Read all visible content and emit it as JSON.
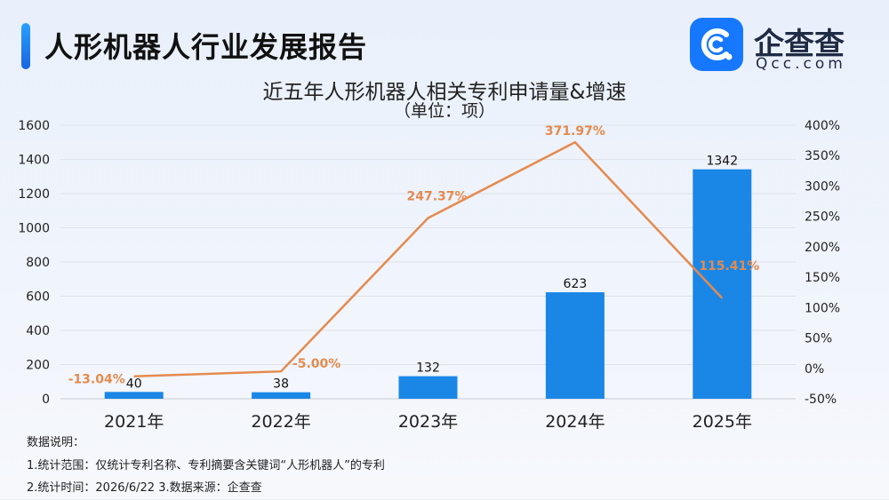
{
  "header": {
    "title": "人形机器人行业发展报告"
  },
  "logo": {
    "name": "企查查",
    "domain": "Qcc.com"
  },
  "chart_data": {
    "type": "bar+line",
    "title": "近五年人形机器人相关专利申请量&增速",
    "subtitle": "（单位：项）",
    "categories": [
      "2021年",
      "2022年",
      "2023年",
      "2024年",
      "2025年"
    ],
    "series": [
      {
        "values": [
          40,
          38,
          132,
          623,
          1342
        ],
        "labels": [
          "40",
          "38",
          "132",
          "623",
          "1342"
        ],
        "axis": "left",
        "color": "#1a87e6"
      },
      {
        "values": [
          -13.04,
          -5.0,
          247.37,
          371.97,
          115.41
        ],
        "labels": [
          "-13.04%",
          "-5.00%",
          "247.37%",
          "371.97%",
          "115.41%"
        ],
        "axis": "right",
        "color": "#e58a4e"
      }
    ],
    "y_left": {
      "min": 0,
      "max": 1600,
      "ticks": [
        "0",
        "200",
        "400",
        "600",
        "800",
        "1000",
        "1200",
        "1400",
        "1600"
      ]
    },
    "y_right": {
      "min": -50,
      "max": 400,
      "ticks": [
        "-50%",
        "0%",
        "50%",
        "100%",
        "150%",
        "200%",
        "250%",
        "300%",
        "350%",
        "400%"
      ]
    },
    "grid": true
  },
  "notes": {
    "heading": "数据说明：",
    "line1": "1.统计范围：仅统计专利名称、专利摘要含关键词“人形机器人”的专利",
    "line2": "2.统计时间：2026/6/22  3.数据来源：企查查"
  }
}
